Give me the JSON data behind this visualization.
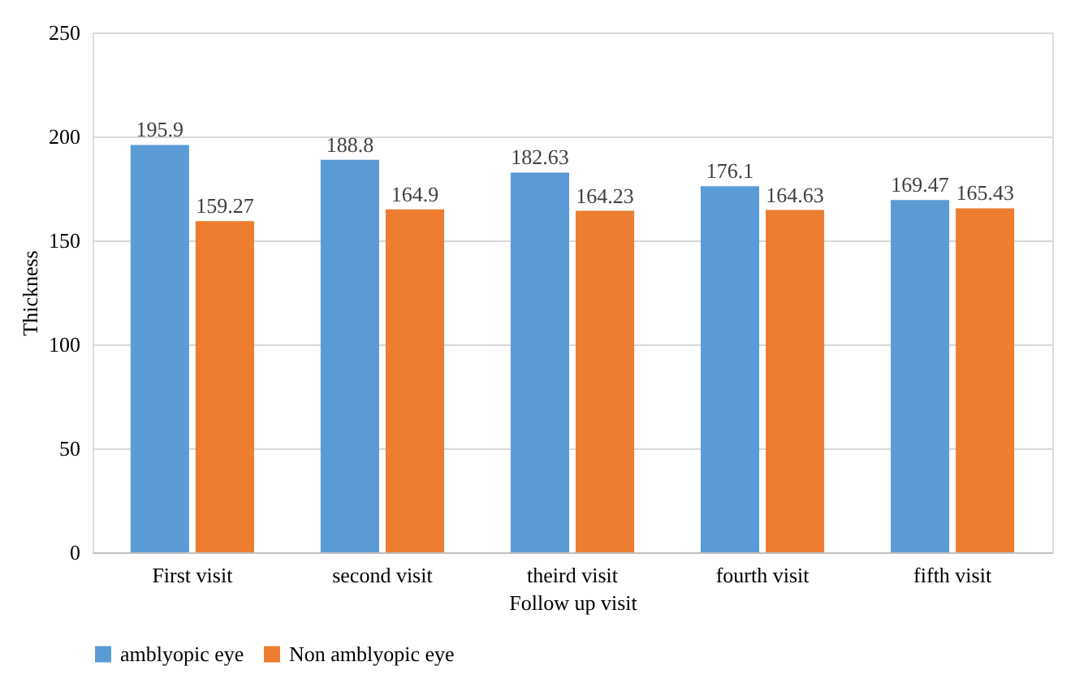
{
  "chart_data": {
    "type": "bar",
    "xlabel": "Follow up visit",
    "ylabel": "Thickness",
    "categories": [
      "First visit",
      "second visit",
      "theird visit",
      "fourth visit",
      "fifth visit"
    ],
    "series": [
      {
        "name": "amblyopic eye",
        "color": "#5b9bd5",
        "values": [
          195.9,
          188.8,
          182.63,
          176.1,
          169.47
        ]
      },
      {
        "name": "Non amblyopic eye",
        "color": "#ed7d31",
        "values": [
          159.27,
          164.9,
          164.23,
          164.63,
          165.43
        ]
      }
    ],
    "ylim": [
      0,
      250
    ],
    "yticks": [
      0,
      50,
      100,
      150,
      200,
      250
    ],
    "grid": "y",
    "legend": "bottom",
    "data_labels": true
  }
}
